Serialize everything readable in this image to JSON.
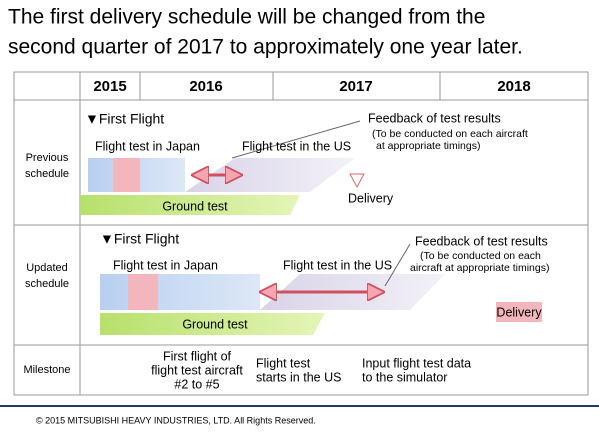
{
  "header": {
    "title_lines": [
      "The first delivery schedule will be changed from the",
      "second quarter of 2017 to approximately one year later."
    ]
  },
  "table": {
    "years": [
      "2015",
      "2016",
      "2017",
      "2018"
    ],
    "previous": {
      "label_lines": [
        "Previous",
        "schedule"
      ],
      "first_flight": "▼First Flight",
      "japan": "Flight test in Japan",
      "us": "Flight test in the US",
      "feedback": "Feedback of test results",
      "note_lines": [
        "(To be conducted on each aircraft",
        "at appropriate timings)"
      ],
      "delivery": "Delivery",
      "ground": "Ground test"
    },
    "updated": {
      "label_lines": [
        "Updated",
        "schedule"
      ],
      "first_flight": "▼First Flight",
      "japan": "Flight test in Japan",
      "us": "Flight test in the US",
      "feedback": "Feedback of test results",
      "note_lines": [
        "(To be conducted on each",
        "aircraft at appropriate timings)"
      ],
      "delivery": "Delivery",
      "ground": "Ground test"
    },
    "milestone": {
      "label": "Milestone",
      "items": [
        [
          "First flight of",
          "flight test aircraft",
          "#2 to #5"
        ],
        [
          "Flight test",
          "starts in the US"
        ],
        [
          "Input flight test data",
          "to the simulator"
        ]
      ]
    }
  },
  "footer": {
    "copyright": "© 2015 MITSUBISHI HEAVY INDUSTRIES, LTD.  All Rights Reserved."
  }
}
